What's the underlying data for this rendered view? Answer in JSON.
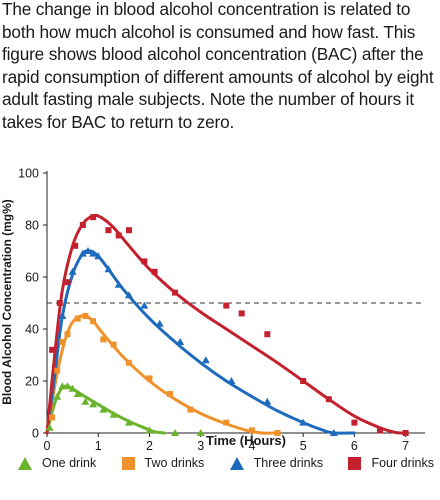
{
  "caption": "The change in blood alcohol concentration is related to both how much alcohol is consumed and how fast. This figure shows blood alcohol concentration (BAC) after the rapid consumption of different amounts of alcohol by eight adult fasting male subjects. Note the number of hours it takes for BAC to return to zero.",
  "chart_data": {
    "type": "line",
    "title": "",
    "xlabel": "Time (Hours)",
    "ylabel": "Blood Alcohol Concentration (mg%)",
    "xlim": [
      0,
      7.3
    ],
    "ylim": [
      0,
      100
    ],
    "x_ticks": [
      0,
      1,
      2,
      3,
      4,
      5,
      6,
      7
    ],
    "y_ticks": [
      0,
      20,
      40,
      60,
      80,
      100
    ],
    "reference_line": {
      "y": 50,
      "style": "dashed"
    },
    "grid": false,
    "legend_position": "bottom",
    "series": [
      {
        "name": "One drink",
        "color": "#6ab42d",
        "marker": "triangle",
        "curve": [
          [
            0,
            0
          ],
          [
            0.1,
            8
          ],
          [
            0.2,
            14
          ],
          [
            0.3,
            17.5
          ],
          [
            0.4,
            18
          ],
          [
            0.5,
            17
          ],
          [
            0.7,
            14.5
          ],
          [
            1,
            11
          ],
          [
            1.3,
            7.5
          ],
          [
            1.6,
            4.5
          ],
          [
            1.9,
            2
          ],
          [
            2.1,
            0.5
          ],
          [
            2.3,
            0
          ]
        ],
        "points": [
          [
            0.05,
            2
          ],
          [
            0.2,
            14
          ],
          [
            0.3,
            18
          ],
          [
            0.4,
            18
          ],
          [
            0.5,
            17
          ],
          [
            0.6,
            15
          ],
          [
            0.75,
            12
          ],
          [
            0.9,
            11
          ],
          [
            1.1,
            9
          ],
          [
            1.3,
            7
          ],
          [
            1.6,
            4
          ],
          [
            2.0,
            1
          ],
          [
            2.5,
            0
          ],
          [
            3.0,
            0
          ]
        ]
      },
      {
        "name": "Two drinks",
        "color": "#f0922c",
        "marker": "square",
        "curve": [
          [
            0,
            0
          ],
          [
            0.15,
            18
          ],
          [
            0.3,
            32
          ],
          [
            0.45,
            41
          ],
          [
            0.6,
            44.5
          ],
          [
            0.75,
            45
          ],
          [
            0.9,
            43
          ],
          [
            1.1,
            38
          ],
          [
            1.5,
            29
          ],
          [
            2,
            20
          ],
          [
            2.5,
            13
          ],
          [
            3,
            7.5
          ],
          [
            3.5,
            3.5
          ],
          [
            3.9,
            1
          ],
          [
            4.2,
            0
          ],
          [
            4.5,
            0
          ]
        ],
        "points": [
          [
            0.1,
            6
          ],
          [
            0.2,
            24
          ],
          [
            0.3,
            35
          ],
          [
            0.4,
            38
          ],
          [
            0.6,
            44
          ],
          [
            0.75,
            45
          ],
          [
            0.9,
            43
          ],
          [
            1.1,
            36
          ],
          [
            1.3,
            34
          ],
          [
            1.6,
            27
          ],
          [
            2.0,
            21
          ],
          [
            2.4,
            15
          ],
          [
            2.8,
            9
          ],
          [
            3.5,
            4
          ],
          [
            4.0,
            1
          ],
          [
            4.5,
            0
          ]
        ]
      },
      {
        "name": "Three drinks",
        "color": "#1e6bbd",
        "marker": "triangle",
        "curve": [
          [
            0,
            0
          ],
          [
            0.15,
            22
          ],
          [
            0.3,
            45
          ],
          [
            0.5,
            61
          ],
          [
            0.7,
            69
          ],
          [
            0.85,
            70
          ],
          [
            1,
            68
          ],
          [
            1.2,
            63
          ],
          [
            1.5,
            55
          ],
          [
            2,
            44
          ],
          [
            2.5,
            35
          ],
          [
            3,
            27
          ],
          [
            3.5,
            20
          ],
          [
            4,
            14
          ],
          [
            4.5,
            8.5
          ],
          [
            5,
            4
          ],
          [
            5.4,
            1
          ],
          [
            5.6,
            0
          ],
          [
            6,
            0
          ]
        ],
        "points": [
          [
            0.3,
            45
          ],
          [
            0.5,
            62
          ],
          [
            0.7,
            69
          ],
          [
            0.8,
            70
          ],
          [
            0.9,
            69
          ],
          [
            1.0,
            68
          ],
          [
            1.2,
            63
          ],
          [
            1.4,
            57
          ],
          [
            1.6,
            53
          ],
          [
            1.9,
            49
          ],
          [
            2.2,
            42
          ],
          [
            2.6,
            35
          ],
          [
            3.1,
            28
          ],
          [
            3.6,
            20
          ],
          [
            4.3,
            12
          ],
          [
            5.0,
            4
          ],
          [
            5.6,
            0
          ]
        ]
      },
      {
        "name": "Four drinks",
        "color": "#c4212e",
        "marker": "square",
        "curve": [
          [
            0,
            0
          ],
          [
            0.15,
            30
          ],
          [
            0.3,
            55
          ],
          [
            0.5,
            72
          ],
          [
            0.7,
            80.5
          ],
          [
            0.9,
            83.5
          ],
          [
            1.05,
            83
          ],
          [
            1.3,
            79
          ],
          [
            1.6,
            72
          ],
          [
            2,
            63
          ],
          [
            2.5,
            54
          ],
          [
            3,
            46.5
          ],
          [
            3.5,
            40
          ],
          [
            4,
            33.5
          ],
          [
            4.5,
            27
          ],
          [
            5,
            20
          ],
          [
            5.5,
            13
          ],
          [
            6,
            6.5
          ],
          [
            6.5,
            2
          ],
          [
            6.8,
            0.2
          ],
          [
            7,
            0
          ]
        ],
        "points": [
          [
            0.1,
            32
          ],
          [
            0.25,
            50
          ],
          [
            0.4,
            58
          ],
          [
            0.55,
            72
          ],
          [
            0.7,
            80
          ],
          [
            0.9,
            83
          ],
          [
            1.2,
            78
          ],
          [
            1.4,
            76
          ],
          [
            1.6,
            78
          ],
          [
            1.9,
            66
          ],
          [
            2.1,
            62
          ],
          [
            2.5,
            54
          ],
          [
            3.5,
            49
          ],
          [
            3.8,
            46
          ],
          [
            4.3,
            38
          ],
          [
            5.0,
            20
          ],
          [
            5.5,
            13
          ],
          [
            6.0,
            4
          ],
          [
            6.5,
            1
          ],
          [
            7.0,
            0
          ]
        ]
      }
    ]
  }
}
